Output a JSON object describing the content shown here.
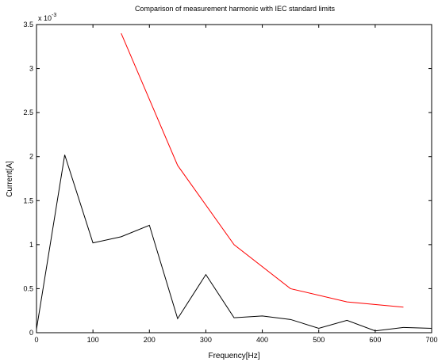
{
  "chart_data": {
    "type": "line",
    "title": "Comparison of measurement harmonic with IEC standard limits",
    "xlabel": "Frequency[Hz]",
    "ylabel": "Current[A]",
    "y_exponent_base": "x 10",
    "y_exponent_power": "-3",
    "xlim": [
      0,
      700
    ],
    "ylim": [
      0,
      3.5
    ],
    "xticks": [
      0,
      100,
      200,
      300,
      400,
      500,
      600,
      700
    ],
    "xtick_labels": [
      "0",
      "100",
      "200",
      "300",
      "400",
      "500",
      "600",
      "700"
    ],
    "yticks": [
      0,
      0.5,
      1,
      1.5,
      2,
      2.5,
      3,
      3.5
    ],
    "ytick_labels": [
      "0",
      "0.5",
      "1",
      "1.5",
      "2",
      "2.5",
      "3",
      "3.5"
    ],
    "grid": false,
    "series": [
      {
        "color": "#000000",
        "x": [
          0,
          50,
          100,
          150,
          200,
          250,
          300,
          350,
          400,
          450,
          500,
          550,
          600,
          650,
          700
        ],
        "y": [
          0.04,
          2.02,
          1.02,
          1.09,
          1.22,
          0.16,
          0.66,
          0.17,
          0.19,
          0.15,
          0.05,
          0.14,
          0.02,
          0.06,
          0.05
        ]
      },
      {
        "color": "#ff0000",
        "x": [
          150,
          250,
          350,
          450,
          550,
          650
        ],
        "y": [
          3.4,
          1.9,
          1.0,
          0.5,
          0.35,
          0.29
        ]
      }
    ]
  }
}
